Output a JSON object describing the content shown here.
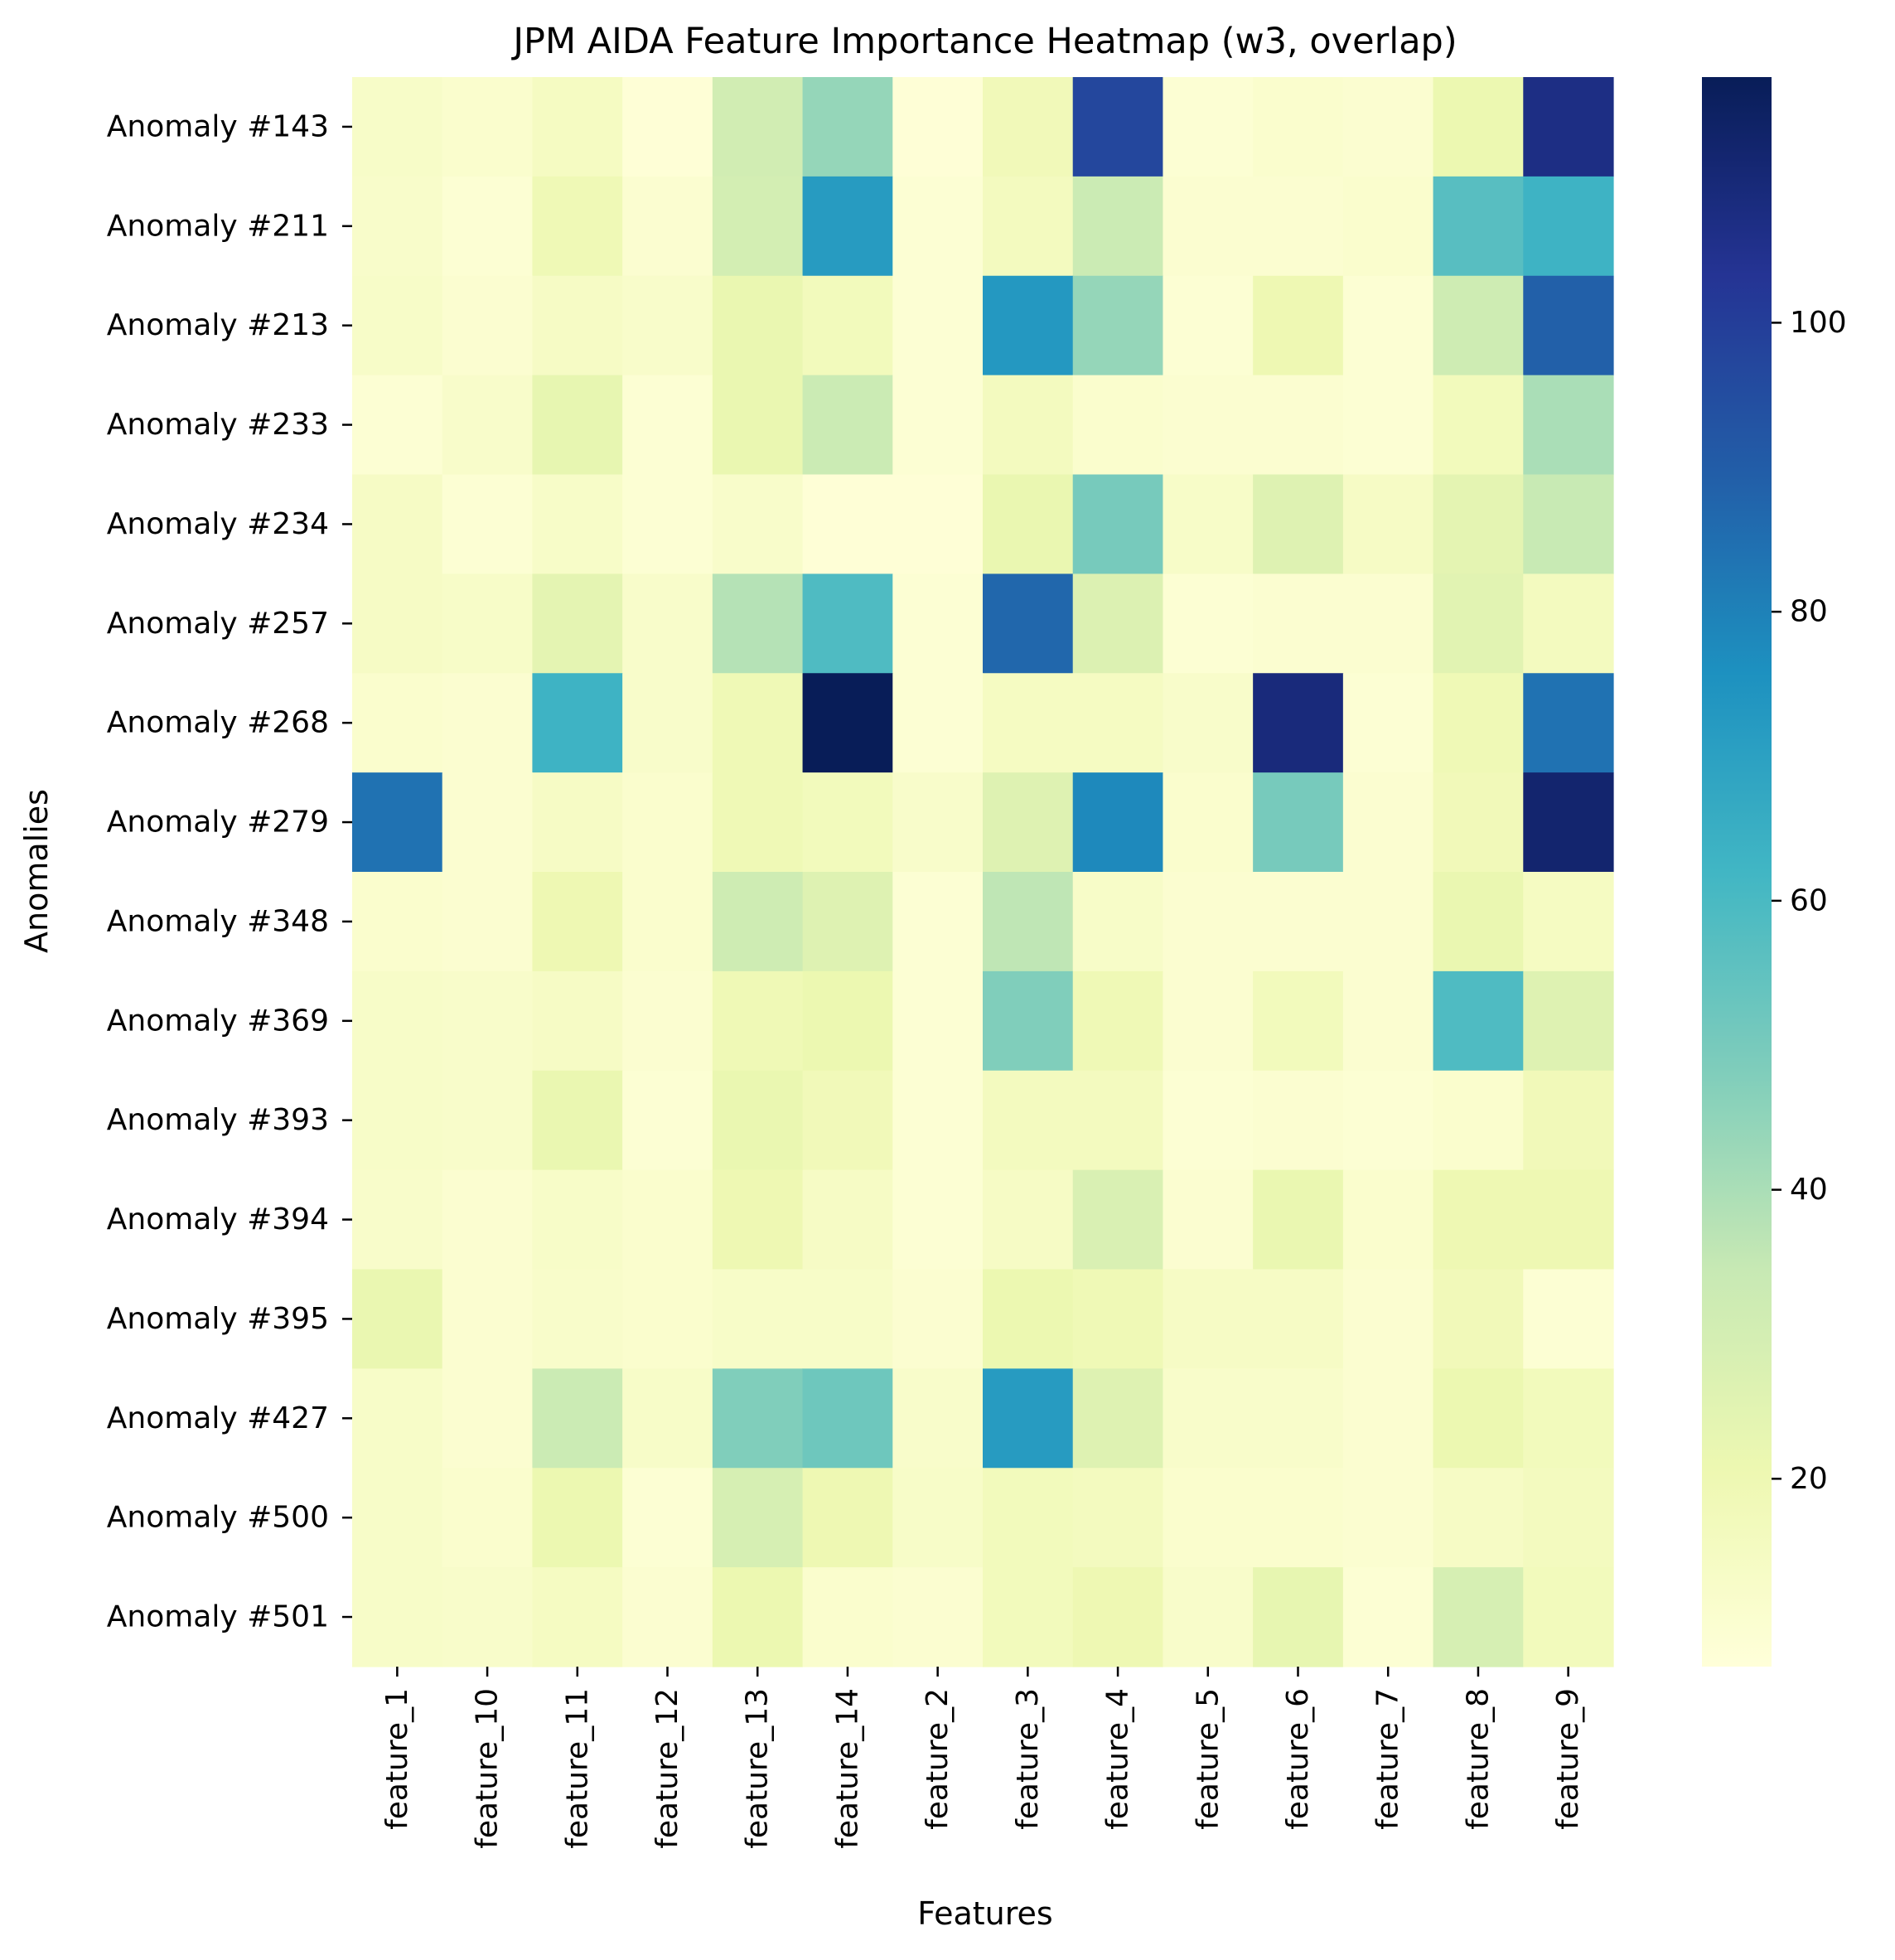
{
  "chart_data": {
    "type": "heatmap",
    "title": "JPM AIDA Feature Importance Heatmap (w3, overlap)",
    "xlabel": "Features",
    "ylabel": "Anomalies",
    "colormap": "YlGnBu",
    "color_range": [
      7,
      117
    ],
    "colorbar_ticks": [
      20,
      40,
      60,
      80,
      100
    ],
    "x_categories": [
      "feature_1",
      "feature_10",
      "feature_11",
      "feature_12",
      "feature_13",
      "feature_14",
      "feature_2",
      "feature_3",
      "feature_4",
      "feature_5",
      "feature_6",
      "feature_7",
      "feature_8",
      "feature_9"
    ],
    "y_categories": [
      "Anomaly #143",
      "Anomaly #211",
      "Anomaly #213",
      "Anomaly #233",
      "Anomaly #234",
      "Anomaly #257",
      "Anomaly #268",
      "Anomaly #279",
      "Anomaly #348",
      "Anomaly #369",
      "Anomaly #393",
      "Anomaly #394",
      "Anomaly #395",
      "Anomaly #427",
      "Anomaly #500",
      "Anomaly #501"
    ],
    "values": [
      [
        13,
        11,
        15,
        8,
        31,
        44,
        8,
        18,
        97,
        9,
        11,
        10,
        21,
        107
      ],
      [
        12,
        9,
        19,
        10,
        30,
        72,
        9,
        16,
        33,
        10,
        10,
        11,
        57,
        63
      ],
      [
        13,
        10,
        14,
        12,
        22,
        17,
        9,
        73,
        44,
        9,
        20,
        9,
        32,
        89
      ],
      [
        9,
        12,
        23,
        9,
        22,
        33,
        9,
        16,
        11,
        10,
        10,
        9,
        17,
        40
      ],
      [
        14,
        9,
        13,
        9,
        12,
        8,
        8,
        22,
        50,
        13,
        26,
        14,
        24,
        34
      ],
      [
        14,
        13,
        24,
        12,
        38,
        59,
        9,
        87,
        27,
        9,
        10,
        10,
        25,
        16
      ],
      [
        11,
        10,
        63,
        12,
        19,
        117,
        9,
        15,
        15,
        12,
        109,
        9,
        19,
        84
      ],
      [
        84,
        10,
        14,
        11,
        19,
        17,
        12,
        26,
        78,
        11,
        50,
        10,
        18,
        112
      ],
      [
        11,
        10,
        20,
        11,
        32,
        26,
        9,
        36,
        13,
        10,
        10,
        10,
        22,
        15
      ],
      [
        13,
        12,
        14,
        10,
        19,
        21,
        9,
        48,
        19,
        10,
        17,
        10,
        59,
        26
      ],
      [
        13,
        12,
        22,
        9,
        22,
        18,
        9,
        16,
        16,
        9,
        10,
        9,
        11,
        18
      ],
      [
        12,
        10,
        13,
        11,
        20,
        14,
        9,
        14,
        28,
        10,
        22,
        11,
        20,
        20
      ],
      [
        22,
        10,
        12,
        11,
        13,
        13,
        10,
        21,
        19,
        14,
        14,
        10,
        18,
        9
      ],
      [
        13,
        10,
        33,
        13,
        48,
        52,
        12,
        72,
        26,
        12,
        12,
        10,
        21,
        17
      ],
      [
        13,
        11,
        21,
        9,
        29,
        20,
        13,
        17,
        16,
        11,
        11,
        10,
        14,
        16
      ],
      [
        13,
        12,
        15,
        10,
        21,
        11,
        10,
        17,
        20,
        12,
        23,
        9,
        29,
        17
      ]
    ]
  }
}
